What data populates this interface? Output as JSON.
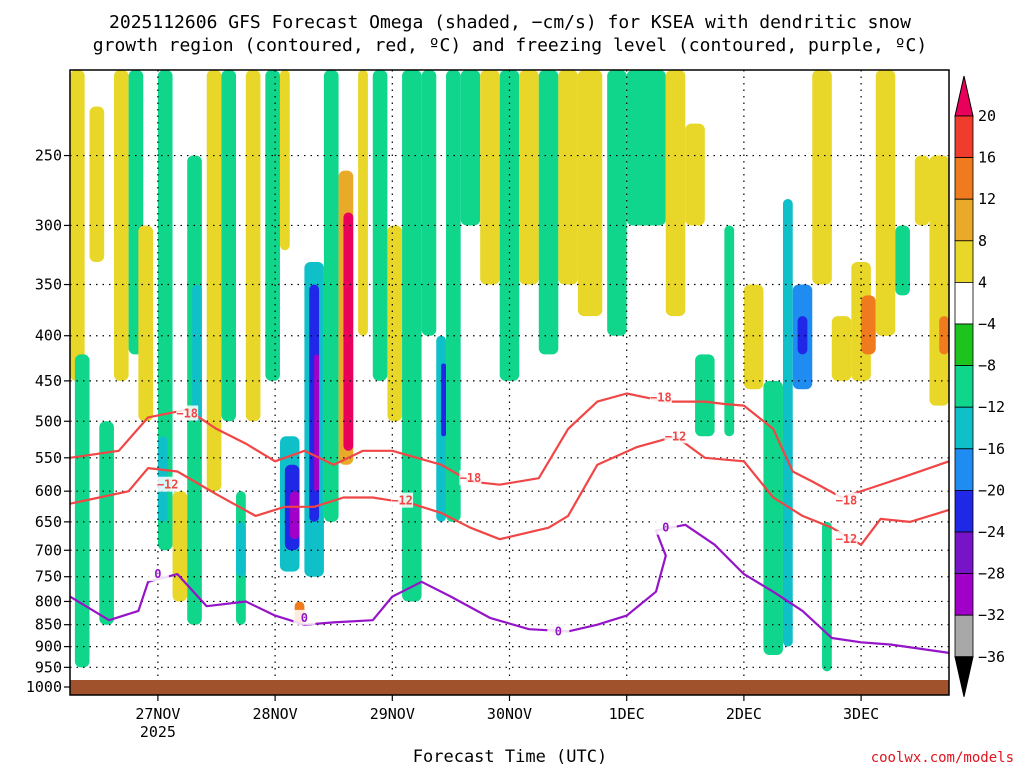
{
  "chart_data": {
    "type": "heatmap",
    "title_lines": [
      "2025112606 GFS Forecast Omega (shaded, −cm/s) for KSEA with dendritic snow",
      "growth region (contoured, red, ºC) and freezing level (contoured, purple, ºC)"
    ],
    "xlabel": "Forecast Time (UTC)",
    "credit": "coolwx.com/models",
    "y_axis": {
      "scale": "log-pressure",
      "reversed": true,
      "range": [
        200,
        1000
      ],
      "ticks": [
        "250",
        "300",
        "350",
        "400",
        "450",
        "500",
        "550",
        "600",
        "650",
        "700",
        "750",
        "800",
        "850",
        "900",
        "950",
        "1000"
      ]
    },
    "x_axis": {
      "range": [
        "2025-11-26T06",
        "2025-12-03T18"
      ],
      "ticks": [
        {
          "t": "2025-11-27T00",
          "label": "27NOV",
          "sub": "2025"
        },
        {
          "t": "2025-11-28T00",
          "label": "28NOV",
          "sub": ""
        },
        {
          "t": "2025-11-29T00",
          "label": "29NOV",
          "sub": ""
        },
        {
          "t": "2025-11-30T00",
          "label": "30NOV",
          "sub": ""
        },
        {
          "t": "2025-12-01T00",
          "label": "1DEC",
          "sub": ""
        },
        {
          "t": "2025-12-02T00",
          "label": "2DEC",
          "sub": ""
        },
        {
          "t": "2025-12-03T00",
          "label": "3DEC",
          "sub": ""
        }
      ]
    },
    "grid": true,
    "colorbar": {
      "labels": [
        "20",
        "16",
        "12",
        "8",
        "4",
        "−4",
        "−8",
        "−12",
        "−16",
        "−20",
        "−24",
        "−28",
        "−32",
        "−36"
      ],
      "colors": [
        "#e8005a",
        "#f03c2c",
        "#f07a1e",
        "#e8aa28",
        "#e8d628",
        "#ffffff",
        "#1ec41e",
        "#10d68c",
        "#10c0c8",
        "#1e8cf0",
        "#1e28e6",
        "#7814c8",
        "#a000c8",
        "#a8a8a8",
        "#000000"
      ]
    },
    "cells": [
      {
        "t0": "2025-11-26T06",
        "t1": "2025-11-26T09",
        "p0": 200,
        "p1": 450,
        "v": 6
      },
      {
        "t0": "2025-11-26T07",
        "t1": "2025-11-26T10",
        "p0": 420,
        "p1": 950,
        "v": -8
      },
      {
        "t0": "2025-11-26T10",
        "t1": "2025-11-26T13",
        "p0": 220,
        "p1": 330,
        "v": 6
      },
      {
        "t0": "2025-11-26T12",
        "t1": "2025-11-26T15",
        "p0": 500,
        "p1": 850,
        "v": -9
      },
      {
        "t0": "2025-11-26T15",
        "t1": "2025-11-26T18",
        "p0": 200,
        "p1": 450,
        "v": 5
      },
      {
        "t0": "2025-11-26T18",
        "t1": "2025-11-26T21",
        "p0": 200,
        "p1": 420,
        "v": -9
      },
      {
        "t0": "2025-11-26T20",
        "t1": "2025-11-26T23",
        "p0": 300,
        "p1": 500,
        "v": 5
      },
      {
        "t0": "2025-11-27T00",
        "t1": "2025-11-27T03",
        "p0": 200,
        "p1": 700,
        "v": -9
      },
      {
        "t0": "2025-11-27T00",
        "t1": "2025-11-27T02",
        "p0": 520,
        "p1": 650,
        "v": -13
      },
      {
        "t0": "2025-11-27T03",
        "t1": "2025-11-27T06",
        "p0": 600,
        "p1": 800,
        "v": 6
      },
      {
        "t0": "2025-11-27T06",
        "t1": "2025-11-27T09",
        "p0": 250,
        "p1": 850,
        "v": -9
      },
      {
        "t0": "2025-11-27T07",
        "t1": "2025-11-27T09",
        "p0": 350,
        "p1": 500,
        "v": -14
      },
      {
        "t0": "2025-11-27T10",
        "t1": "2025-11-27T13",
        "p0": 200,
        "p1": 600,
        "v": 5
      },
      {
        "t0": "2025-11-27T13",
        "t1": "2025-11-27T16",
        "p0": 200,
        "p1": 500,
        "v": -9
      },
      {
        "t0": "2025-11-27T16",
        "t1": "2025-11-27T18",
        "p0": 600,
        "p1": 850,
        "v": -9
      },
      {
        "t0": "2025-11-27T16",
        "t1": "2025-11-27T18",
        "p0": 650,
        "p1": 750,
        "v": -14
      },
      {
        "t0": "2025-11-27T18",
        "t1": "2025-11-27T21",
        "p0": 200,
        "p1": 500,
        "v": 5
      },
      {
        "t0": "2025-11-27T22",
        "t1": "2025-11-28T01",
        "p0": 200,
        "p1": 450,
        "v": -9
      },
      {
        "t0": "2025-11-28T01",
        "t1": "2025-11-28T03",
        "p0": 200,
        "p1": 320,
        "v": 5
      },
      {
        "t0": "2025-11-28T01",
        "t1": "2025-11-28T05",
        "p0": 520,
        "p1": 740,
        "v": -12
      },
      {
        "t0": "2025-11-28T02",
        "t1": "2025-11-28T05",
        "p0": 560,
        "p1": 700,
        "v": -22
      },
      {
        "t0": "2025-11-28T03",
        "t1": "2025-11-28T05",
        "p0": 600,
        "p1": 680,
        "v": -30
      },
      {
        "t0": "2025-11-28T04",
        "t1": "2025-11-28T06",
        "p0": 800,
        "p1": 850,
        "v": 12
      },
      {
        "t0": "2025-11-28T06",
        "t1": "2025-11-28T10",
        "p0": 330,
        "p1": 750,
        "v": -12
      },
      {
        "t0": "2025-11-28T07",
        "t1": "2025-11-28T09",
        "p0": 350,
        "p1": 650,
        "v": -22
      },
      {
        "t0": "2025-11-28T08",
        "t1": "2025-11-28T09",
        "p0": 420,
        "p1": 600,
        "v": -28
      },
      {
        "t0": "2025-11-28T10",
        "t1": "2025-11-28T13",
        "p0": 200,
        "p1": 650,
        "v": -9
      },
      {
        "t0": "2025-11-28T13",
        "t1": "2025-11-28T16",
        "p0": 260,
        "p1": 560,
        "v": 9
      },
      {
        "t0": "2025-11-28T14",
        "t1": "2025-11-28T16",
        "p0": 290,
        "p1": 540,
        "v": 20
      },
      {
        "t0": "2025-11-28T17",
        "t1": "2025-11-28T19",
        "p0": 200,
        "p1": 400,
        "v": 5
      },
      {
        "t0": "2025-11-28T20",
        "t1": "2025-11-28T23",
        "p0": 200,
        "p1": 450,
        "v": -9
      },
      {
        "t0": "2025-11-28T23",
        "t1": "2025-11-29T02",
        "p0": 300,
        "p1": 500,
        "v": 5
      },
      {
        "t0": "2025-11-29T02",
        "t1": "2025-11-29T06",
        "p0": 200,
        "p1": 800,
        "v": -9
      },
      {
        "t0": "2025-11-29T06",
        "t1": "2025-11-29T09",
        "p0": 200,
        "p1": 400,
        "v": -9
      },
      {
        "t0": "2025-11-29T09",
        "t1": "2025-11-29T11",
        "p0": 400,
        "p1": 650,
        "v": -15
      },
      {
        "t0": "2025-11-29T10",
        "t1": "2025-11-29T11",
        "p0": 430,
        "p1": 520,
        "v": -22
      },
      {
        "t0": "2025-11-29T11",
        "t1": "2025-11-29T14",
        "p0": 200,
        "p1": 650,
        "v": -9
      },
      {
        "t0": "2025-11-29T14",
        "t1": "2025-11-29T18",
        "p0": 200,
        "p1": 300,
        "v": -9
      },
      {
        "t0": "2025-11-29T18",
        "t1": "2025-11-29T22",
        "p0": 200,
        "p1": 350,
        "v": 5
      },
      {
        "t0": "2025-11-29T22",
        "t1": "2025-11-30T02",
        "p0": 200,
        "p1": 450,
        "v": -9
      },
      {
        "t0": "2025-11-30T02",
        "t1": "2025-11-30T06",
        "p0": 200,
        "p1": 350,
        "v": 5
      },
      {
        "t0": "2025-11-30T06",
        "t1": "2025-11-30T10",
        "p0": 200,
        "p1": 420,
        "v": -9
      },
      {
        "t0": "2025-11-30T10",
        "t1": "2025-11-30T14",
        "p0": 200,
        "p1": 350,
        "v": 6
      },
      {
        "t0": "2025-11-30T14",
        "t1": "2025-11-30T19",
        "p0": 200,
        "p1": 380,
        "v": 6
      },
      {
        "t0": "2025-11-30T20",
        "t1": "2025-12-01T00",
        "p0": 200,
        "p1": 400,
        "v": -9
      },
      {
        "t0": "2025-12-01T00",
        "t1": "2025-12-01T08",
        "p0": 200,
        "p1": 300,
        "v": -9
      },
      {
        "t0": "2025-12-01T08",
        "t1": "2025-12-01T12",
        "p0": 200,
        "p1": 380,
        "v": 5
      },
      {
        "t0": "2025-12-01T12",
        "t1": "2025-12-01T16",
        "p0": 230,
        "p1": 300,
        "v": 6
      },
      {
        "t0": "2025-12-01T14",
        "t1": "2025-12-01T18",
        "p0": 420,
        "p1": 520,
        "v": -9
      },
      {
        "t0": "2025-12-01T20",
        "t1": "2025-12-01T22",
        "p0": 300,
        "p1": 520,
        "v": -9
      },
      {
        "t0": "2025-12-02T00",
        "t1": "2025-12-02T04",
        "p0": 350,
        "p1": 460,
        "v": 5
      },
      {
        "t0": "2025-12-02T04",
        "t1": "2025-12-02T08",
        "p0": 450,
        "p1": 920,
        "v": -10
      },
      {
        "t0": "2025-12-02T08",
        "t1": "2025-12-02T10",
        "p0": 280,
        "p1": 900,
        "v": -12
      },
      {
        "t0": "2025-12-02T10",
        "t1": "2025-12-02T14",
        "p0": 350,
        "p1": 460,
        "v": -17
      },
      {
        "t0": "2025-12-02T11",
        "t1": "2025-12-02T13",
        "p0": 380,
        "p1": 420,
        "v": -22
      },
      {
        "t0": "2025-12-02T14",
        "t1": "2025-12-02T18",
        "p0": 200,
        "p1": 350,
        "v": 5
      },
      {
        "t0": "2025-12-02T16",
        "t1": "2025-12-02T18",
        "p0": 650,
        "p1": 960,
        "v": -10
      },
      {
        "t0": "2025-12-02T18",
        "t1": "2025-12-02T22",
        "p0": 380,
        "p1": 450,
        "v": 5
      },
      {
        "t0": "2025-12-02T22",
        "t1": "2025-12-03T02",
        "p0": 330,
        "p1": 450,
        "v": 6
      },
      {
        "t0": "2025-12-03T00",
        "t1": "2025-12-03T03",
        "p0": 360,
        "p1": 420,
        "v": 12
      },
      {
        "t0": "2025-12-03T03",
        "t1": "2025-12-03T07",
        "p0": 200,
        "p1": 400,
        "v": 5
      },
      {
        "t0": "2025-12-03T07",
        "t1": "2025-12-03T10",
        "p0": 300,
        "p1": 360,
        "v": -9
      },
      {
        "t0": "2025-12-03T11",
        "t1": "2025-12-03T14",
        "p0": 250,
        "p1": 300,
        "v": 5
      },
      {
        "t0": "2025-12-03T14",
        "t1": "2025-12-03T18",
        "p0": 250,
        "p1": 480,
        "v": 6
      },
      {
        "t0": "2025-12-03T16",
        "t1": "2025-12-03T18",
        "p0": 380,
        "p1": 420,
        "v": 12
      }
    ],
    "contours": [
      {
        "color": "#f04646",
        "label": "−18",
        "label_at": [
          "2025-11-27T06",
          490
        ],
        "label_at2": [
          "2025-11-29T16",
          580
        ],
        "label_at3": [
          "2025-12-01T07",
          470
        ],
        "label_at4": [
          "2025-12-02T21",
          615
        ],
        "pts": [
          [
            "2025-11-26T06",
            550
          ],
          [
            "2025-11-26T16",
            540
          ],
          [
            "2025-11-26T22",
            495
          ],
          [
            "2025-11-27T06",
            485
          ],
          [
            "2025-11-27T12",
            510
          ],
          [
            "2025-11-27T18",
            530
          ],
          [
            "2025-11-28T00",
            555
          ],
          [
            "2025-11-28T06",
            540
          ],
          [
            "2025-11-28T12",
            560
          ],
          [
            "2025-11-28T18",
            540
          ],
          [
            "2025-11-29T00",
            540
          ],
          [
            "2025-11-29T10",
            560
          ],
          [
            "2025-11-29T16",
            585
          ],
          [
            "2025-11-29T22",
            590
          ],
          [
            "2025-11-30T06",
            580
          ],
          [
            "2025-11-30T12",
            510
          ],
          [
            "2025-11-30T18",
            475
          ],
          [
            "2025-12-01T00",
            465
          ],
          [
            "2025-12-01T08",
            475
          ],
          [
            "2025-12-01T16",
            475
          ],
          [
            "2025-12-01T20",
            478
          ],
          [
            "2025-12-02T00",
            480
          ],
          [
            "2025-12-02T06",
            510
          ],
          [
            "2025-12-02T10",
            570
          ],
          [
            "2025-12-02T14",
            585
          ],
          [
            "2025-12-02T20",
            610
          ],
          [
            "2025-12-03T02",
            595
          ],
          [
            "2025-12-03T08",
            580
          ],
          [
            "2025-12-03T18",
            555
          ]
        ]
      },
      {
        "color": "#f04646",
        "label": "−12",
        "label_at": [
          "2025-11-27T02",
          590
        ],
        "label_at2": [
          "2025-11-29T02",
          615
        ],
        "label_at3": [
          "2025-12-01T10",
          520
        ],
        "label_at4": [
          "2025-12-02T21",
          680
        ],
        "pts": [
          [
            "2025-11-26T06",
            620
          ],
          [
            "2025-11-26T12",
            610
          ],
          [
            "2025-11-26T18",
            600
          ],
          [
            "2025-11-26T22",
            565
          ],
          [
            "2025-11-27T04",
            570
          ],
          [
            "2025-11-27T12",
            605
          ],
          [
            "2025-11-27T20",
            640
          ],
          [
            "2025-11-28T02",
            625
          ],
          [
            "2025-11-28T08",
            625
          ],
          [
            "2025-11-28T14",
            610
          ],
          [
            "2025-11-28T20",
            610
          ],
          [
            "2025-11-29T04",
            620
          ],
          [
            "2025-11-29T10",
            635
          ],
          [
            "2025-11-29T16",
            660
          ],
          [
            "2025-11-29T22",
            680
          ],
          [
            "2025-11-30T08",
            660
          ],
          [
            "2025-11-30T12",
            640
          ],
          [
            "2025-11-30T18",
            560
          ],
          [
            "2025-12-01T02",
            535
          ],
          [
            "2025-12-01T10",
            520
          ],
          [
            "2025-12-01T16",
            550
          ],
          [
            "2025-12-02T00",
            555
          ],
          [
            "2025-12-02T06",
            610
          ],
          [
            "2025-12-02T12",
            640
          ],
          [
            "2025-12-02T18",
            660
          ],
          [
            "2025-12-02T24",
            690
          ],
          [
            "2025-12-03T04",
            645
          ],
          [
            "2025-12-03T10",
            650
          ],
          [
            "2025-12-03T18",
            630
          ]
        ]
      },
      {
        "color": "#9614c8",
        "label": "0",
        "label_at": [
          "2025-11-27T00",
          745
        ],
        "label_at2": [
          "2025-11-28T06",
          835
        ],
        "label_at3": [
          "2025-11-30T10",
          865
        ],
        "label_at4": [
          "2025-12-01T08",
          660
        ],
        "pts": [
          [
            "2025-11-26T06",
            790
          ],
          [
            "2025-11-26T14",
            840
          ],
          [
            "2025-11-26T20",
            820
          ],
          [
            "2025-11-26T22",
            760
          ],
          [
            "2025-11-27T04",
            745
          ],
          [
            "2025-11-27T10",
            810
          ],
          [
            "2025-11-27T18",
            800
          ],
          [
            "2025-11-28T00",
            830
          ],
          [
            "2025-11-28T06",
            850
          ],
          [
            "2025-11-28T12",
            845
          ],
          [
            "2025-11-28T20",
            840
          ],
          [
            "2025-11-29T00",
            790
          ],
          [
            "2025-11-29T06",
            760
          ],
          [
            "2025-11-29T12",
            790
          ],
          [
            "2025-11-29T20",
            835
          ],
          [
            "2025-11-30T04",
            860
          ],
          [
            "2025-11-30T12",
            865
          ],
          [
            "2025-11-30T18",
            850
          ],
          [
            "2025-12-01T00",
            830
          ],
          [
            "2025-12-01T06",
            780
          ],
          [
            "2025-12-01T08",
            710
          ],
          [
            "2025-12-01T06",
            665
          ],
          [
            "2025-12-01T12",
            655
          ],
          [
            "2025-12-01T18",
            690
          ],
          [
            "2025-12-02T00",
            745
          ],
          [
            "2025-12-02T06",
            780
          ],
          [
            "2025-12-02T12",
            820
          ],
          [
            "2025-12-02T18",
            880
          ],
          [
            "2025-12-03T00",
            890
          ],
          [
            "2025-12-03T06",
            895
          ],
          [
            "2025-12-03T18",
            915
          ]
        ]
      }
    ]
  }
}
